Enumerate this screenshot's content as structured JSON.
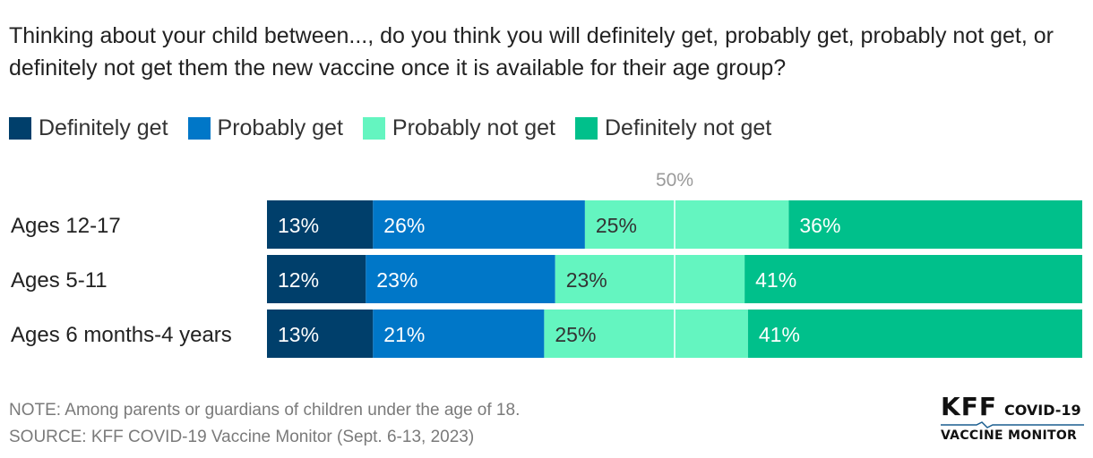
{
  "title": "Thinking about your child between..., do you think you will definitely get, probably get, probably not get, or definitely not get them the new vaccine once it is available for their age group?",
  "footer": {
    "note": "NOTE: Among parents or guardians of children under the age of 18.",
    "source": "SOURCE: KFF COVID-19 Vaccine Monitor (Sept. 6-13, 2023)"
  },
  "logo": {
    "brand": "KFF",
    "program": "COVID-19",
    "subtitle": "VACCINE MONITOR",
    "line_icon": "pulse-line-icon"
  },
  "chart_data": {
    "type": "bar",
    "orientation": "horizontal",
    "stacked": true,
    "categories": [
      "Ages 12-17",
      "Ages 5-11",
      "Ages 6 months-4 years"
    ],
    "series": [
      {
        "name": "Definitely get",
        "values": [
          13,
          12,
          13
        ],
        "color": "#003f6b"
      },
      {
        "name": "Probably get",
        "values": [
          26,
          23,
          21
        ],
        "color": "#0077c8"
      },
      {
        "name": "Probably not get",
        "values": [
          25,
          23,
          25
        ],
        "color": "#64f5c0"
      },
      {
        "name": "Definitely not get",
        "values": [
          36,
          41,
          41
        ],
        "color": "#00c08b"
      }
    ],
    "value_suffix": "%",
    "reference_line": {
      "value": 50,
      "label": "50%"
    },
    "legend_position": "top-left",
    "xlim": [
      0,
      100
    ],
    "grid": false
  }
}
